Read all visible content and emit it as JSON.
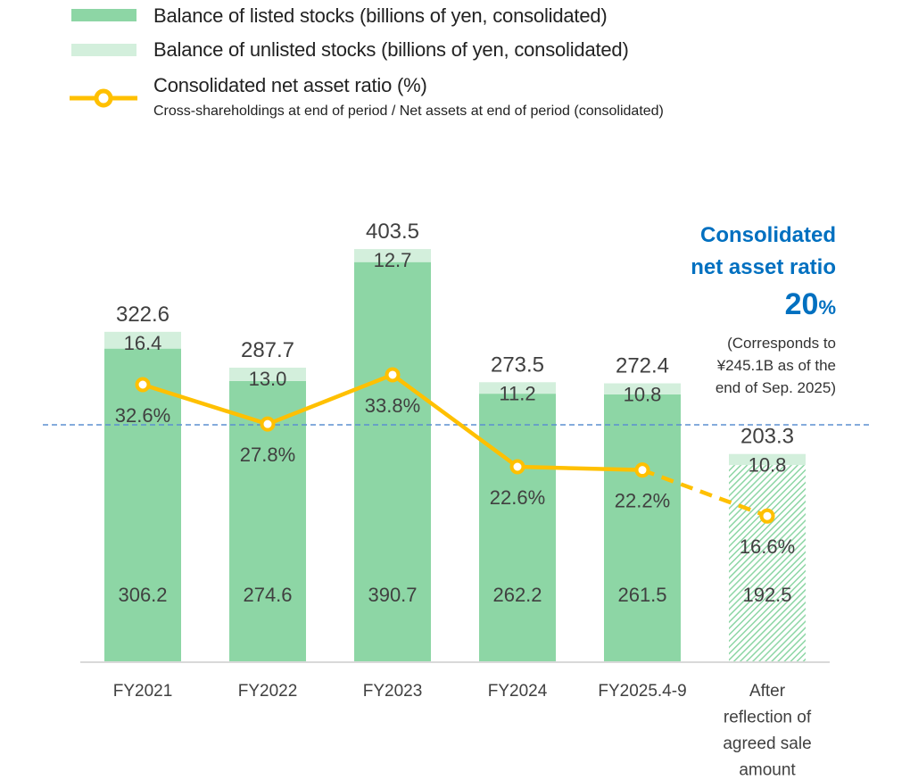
{
  "legend": {
    "listed_label": "Balance of listed stocks (billions of yen, consolidated)",
    "unlisted_label": "Balance of unlisted stocks (billions of yen, consolidated)",
    "ratio_label": "Consolidated net asset ratio (%)",
    "ratio_sublabel": "Cross-shareholdings at end of period / Net assets at end of period (consolidated)"
  },
  "annotation": {
    "title_line1": "Consolidated",
    "title_line2": "net asset ratio",
    "target_value": "20",
    "target_unit": "%",
    "note_line1": "(Corresponds to",
    "note_line2": "¥245.1B as of the",
    "note_line3": "end of Sep. 2025)"
  },
  "colors": {
    "listed": "#8dd6a5",
    "unlisted": "#d3efdc",
    "line": "#ffc000",
    "reference": "#5b8fd0",
    "annotation": "#0070c0",
    "text": "#404040",
    "axis": "#d9d9d9"
  },
  "chart_data": {
    "type": "bar",
    "stacked": true,
    "categories": [
      "FY2021",
      "FY2022",
      "FY2023",
      "FY2024",
      "FY2025.4-9",
      "After reflection of agreed sale amount"
    ],
    "category_lines": [
      [
        "FY2021"
      ],
      [
        "FY2022"
      ],
      [
        "FY2023"
      ],
      [
        "FY2024"
      ],
      [
        "FY2025.4-9"
      ],
      [
        "After",
        "reflection of",
        "agreed sale",
        "amount"
      ]
    ],
    "series": [
      {
        "name": "Balance of listed stocks (billions of yen, consolidated)",
        "type": "bar",
        "values": [
          306.2,
          274.6,
          390.7,
          262.2,
          261.5,
          192.5
        ],
        "labels": [
          "306.2",
          "274.6",
          "390.7",
          "262.2",
          "261.5",
          "192.5"
        ],
        "hatched_last": true
      },
      {
        "name": "Balance of unlisted stocks (billions of yen, consolidated)",
        "type": "bar",
        "values": [
          16.4,
          13.0,
          12.7,
          11.2,
          10.8,
          10.8
        ],
        "labels": [
          "16.4",
          "13.0",
          "12.7",
          "11.2",
          "10.8",
          "10.8"
        ]
      },
      {
        "name": "Consolidated net asset ratio (%)",
        "type": "line",
        "values": [
          32.6,
          27.8,
          33.8,
          22.6,
          22.2,
          16.6
        ],
        "labels": [
          "32.6%",
          "27.8%",
          "33.8%",
          "22.6%",
          "22.2%",
          "16.6%"
        ],
        "dashed_last_segment": true
      }
    ],
    "totals": [
      322.6,
      287.7,
      403.5,
      273.5,
      272.4,
      203.3
    ],
    "total_labels": [
      "322.6",
      "287.7",
      "403.5",
      "273.5",
      "272.4",
      "203.3"
    ],
    "reference_line": {
      "value": 20,
      "label": "Consolidated net asset ratio 20%",
      "style": "dashed"
    },
    "title": "",
    "xlabel": "",
    "ylabel": "",
    "ylim": [
      0,
      403.5
    ],
    "grid": false,
    "legend_position": "top-left"
  }
}
